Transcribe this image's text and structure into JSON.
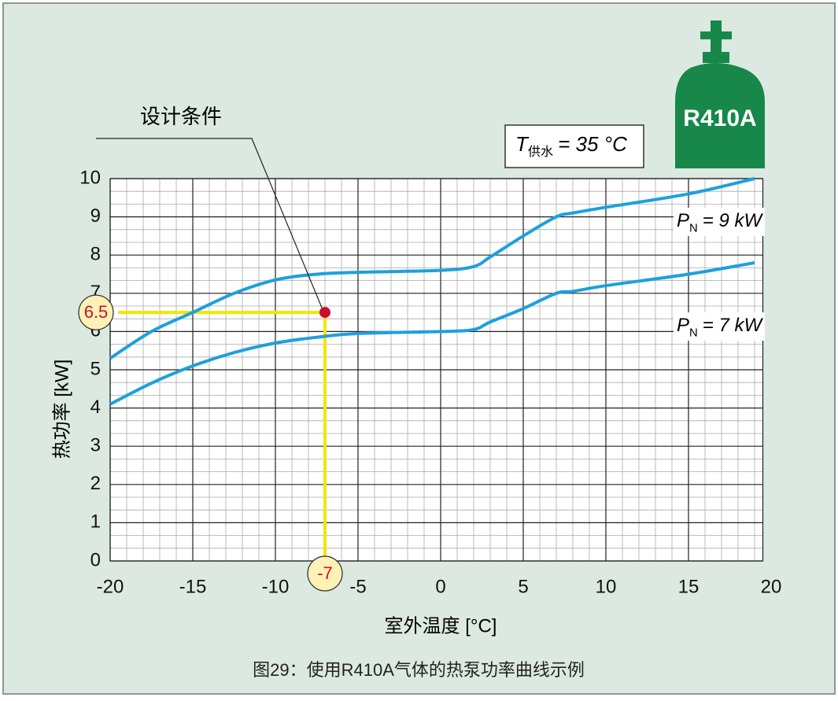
{
  "chart_data": {
    "type": "line",
    "ylabel": "热功率 [kW]",
    "xlabel": "室外温度 [°C]",
    "caption": "图29：使用R410A气体的热泵功率曲线示例",
    "badge": "R410A",
    "condition": {
      "main": "T",
      "sub": "供水",
      "rest": "= 35 °C"
    },
    "x": [
      -20,
      -17.5,
      -15,
      -12.5,
      -10,
      -7.5,
      -5,
      0,
      2,
      3,
      5,
      7,
      8,
      10,
      15,
      19
    ],
    "series": [
      {
        "label": {
          "main": "P",
          "sub": "N",
          "rest": "= 9 kW"
        },
        "color": "#1ea0dc",
        "values": [
          5.3,
          6.0,
          6.5,
          7.0,
          7.35,
          7.5,
          7.55,
          7.6,
          7.7,
          7.95,
          8.5,
          9.0,
          9.1,
          9.25,
          9.6,
          10.0
        ]
      },
      {
        "label": {
          "main": "P",
          "sub": "N",
          "rest": "= 7 kW"
        },
        "color": "#1ea0dc",
        "values": [
          4.1,
          4.65,
          5.1,
          5.45,
          5.7,
          5.85,
          5.95,
          6.0,
          6.05,
          6.25,
          6.6,
          7.0,
          7.05,
          7.2,
          7.5,
          7.8
        ]
      }
    ],
    "design_point": {
      "label": "设计条件",
      "x": -7,
      "y": 6.5,
      "color": "#c8102e"
    },
    "xlim": [
      -20,
      19.5
    ],
    "xticks": [
      -20,
      -15,
      -10,
      -5,
      0,
      5,
      10,
      15,
      20
    ],
    "ylim": [
      0,
      10
    ],
    "yticks": [
      0,
      1,
      2,
      3,
      4,
      5,
      6,
      7,
      8,
      9,
      10
    ],
    "grid": true
  }
}
